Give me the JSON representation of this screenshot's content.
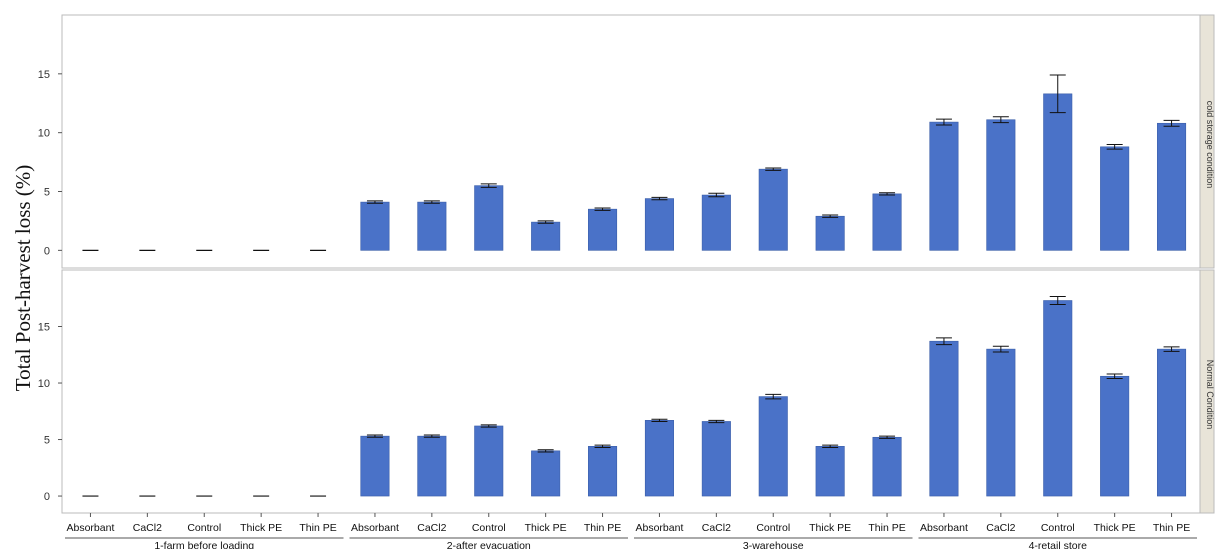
{
  "chart_data": {
    "type": "bar",
    "ylabel": "Total Post-harvest loss (%)",
    "groups": [
      "1-farm before loading",
      "2-after evacuation",
      "3-warehouse",
      "4-retail store"
    ],
    "categories": [
      "Absorbant",
      "CaCl2",
      "Control",
      "Thick PE",
      "Thin PE"
    ],
    "bar_color": "#4a72c8",
    "panels": [
      {
        "name": "cold storage condition",
        "ylim": [
          -1.5,
          20
        ],
        "yticks": [
          0,
          5,
          10,
          15
        ],
        "values": [
          [
            0,
            0,
            0,
            0,
            0
          ],
          [
            4.1,
            4.1,
            5.5,
            2.4,
            3.5
          ],
          [
            4.4,
            4.7,
            6.9,
            2.9,
            4.8
          ],
          [
            10.9,
            11.1,
            13.3,
            8.8,
            10.8
          ]
        ],
        "errors": [
          [
            0,
            0,
            0,
            0,
            0
          ],
          [
            0.1,
            0.1,
            0.15,
            0.1,
            0.1
          ],
          [
            0.1,
            0.15,
            0.1,
            0.1,
            0.1
          ],
          [
            0.25,
            0.25,
            1.6,
            0.2,
            0.25
          ]
        ]
      },
      {
        "name": "Normal Condition",
        "ylim": [
          -1.5,
          20
        ],
        "yticks": [
          0,
          5,
          10,
          15
        ],
        "values": [
          [
            0,
            0,
            0,
            0,
            0
          ],
          [
            5.3,
            5.3,
            6.2,
            4.0,
            4.4
          ],
          [
            6.7,
            6.6,
            8.8,
            4.4,
            5.2
          ],
          [
            13.7,
            13.0,
            17.3,
            10.6,
            13.0
          ]
        ],
        "errors": [
          [
            0,
            0,
            0,
            0,
            0
          ],
          [
            0.1,
            0.1,
            0.1,
            0.1,
            0.1
          ],
          [
            0.1,
            0.1,
            0.2,
            0.1,
            0.1
          ],
          [
            0.3,
            0.25,
            0.35,
            0.2,
            0.2
          ]
        ]
      }
    ]
  }
}
